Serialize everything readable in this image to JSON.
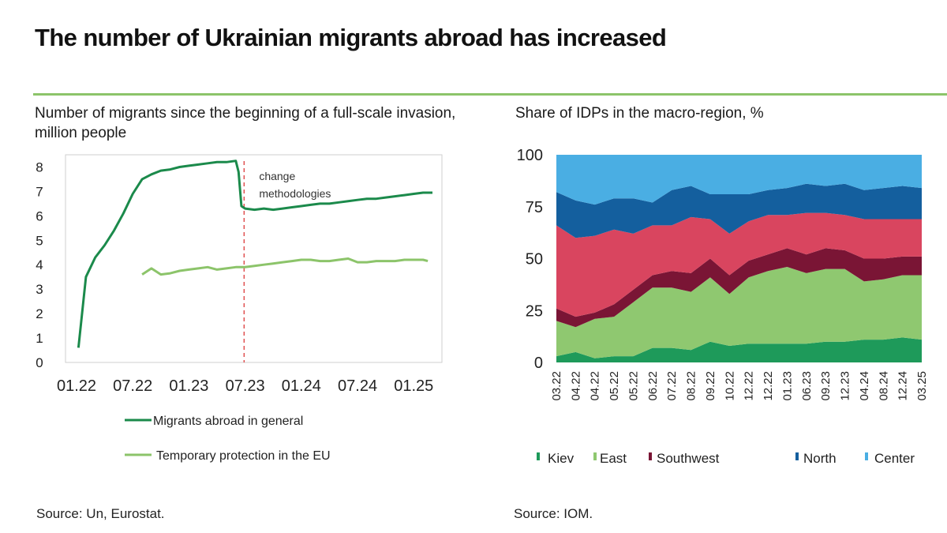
{
  "title": "The number of Ukrainian migrants abroad has increased",
  "colors": {
    "rule": "#8cc46a",
    "migrants_abroad": "#1b8a4b",
    "temporary_protection": "#8cc46a",
    "methodology_line": "#e05050",
    "kiev": "#1e9a5a",
    "east": "#8fc870",
    "southwest": "#7a1535",
    "north_red": "#d9455f",
    "north": "#145f9e",
    "center": "#4aaee3"
  },
  "left": {
    "subtitle": "Number of migrants since the beginning of a full-scale invasion, million people",
    "source": "Source: Un, Eurostat."
  },
  "right": {
    "subtitle": "Share of IDPs in the macro-region, %",
    "source": "Source: IOM."
  },
  "chart_data": [
    {
      "type": "line",
      "ylim": [
        0,
        8.5
      ],
      "yticks": [
        "0",
        "1",
        "2",
        "3",
        "4",
        "5",
        "6",
        "7",
        "8"
      ],
      "xlim": [
        0,
        38
      ],
      "xticks": [
        {
          "label": "01.22",
          "x": 0
        },
        {
          "label": "07.22",
          "x": 6
        },
        {
          "label": "01.23",
          "x": 12
        },
        {
          "label": "07.23",
          "x": 18
        },
        {
          "label": "01.24",
          "x": 24
        },
        {
          "label": "07.24",
          "x": 30
        },
        {
          "label": "01.25",
          "x": 36
        }
      ],
      "annotation": {
        "text_lines": [
          "change",
          "methodologies"
        ],
        "x": 17.3
      },
      "series": [
        {
          "name": "Migrants abroad in general",
          "x": [
            0.2,
            1,
            2,
            3,
            4,
            5,
            6,
            7,
            8,
            9,
            10,
            11,
            12,
            13,
            14,
            15,
            16,
            17,
            17.3,
            17.6,
            18,
            19,
            20,
            21,
            22,
            23,
            24,
            25,
            26,
            27,
            28,
            29,
            30,
            31,
            32,
            33,
            34,
            35,
            36,
            37,
            38
          ],
          "y": [
            0.6,
            3.5,
            4.3,
            4.8,
            5.4,
            6.1,
            6.9,
            7.5,
            7.7,
            7.85,
            7.9,
            8.0,
            8.05,
            8.1,
            8.15,
            8.2,
            8.2,
            8.25,
            7.8,
            6.4,
            6.3,
            6.25,
            6.3,
            6.25,
            6.3,
            6.35,
            6.4,
            6.45,
            6.5,
            6.5,
            6.55,
            6.6,
            6.65,
            6.7,
            6.7,
            6.75,
            6.8,
            6.85,
            6.9,
            6.95,
            6.95
          ]
        },
        {
          "name": "Temporary protection in the EU",
          "x": [
            7,
            8,
            9,
            10,
            11,
            12,
            13,
            14,
            15,
            16,
            17,
            18,
            19,
            20,
            21,
            22,
            23,
            24,
            25,
            26,
            27,
            28,
            29,
            30,
            31,
            32,
            33,
            34,
            35,
            36,
            37,
            37.5
          ],
          "y": [
            3.6,
            3.85,
            3.6,
            3.65,
            3.75,
            3.8,
            3.85,
            3.9,
            3.8,
            3.85,
            3.9,
            3.9,
            3.95,
            4.0,
            4.05,
            4.1,
            4.15,
            4.2,
            4.2,
            4.15,
            4.15,
            4.2,
            4.25,
            4.1,
            4.1,
            4.15,
            4.15,
            4.15,
            4.2,
            4.2,
            4.2,
            4.15
          ]
        }
      ]
    },
    {
      "type": "area",
      "stacked": true,
      "ylim": [
        0,
        100
      ],
      "yticks": [
        "0",
        "25",
        "50",
        "75",
        "100"
      ],
      "x_labels": [
        "03.22",
        "04.22",
        "04.22",
        "05.22",
        "05.22",
        "06.22",
        "07.22",
        "08.22",
        "09.22",
        "10.22",
        "12.22",
        "12.22",
        "01.23",
        "06.23",
        "09.23",
        "12.23",
        "04.24",
        "08.24",
        "12.24",
        "03.25"
      ],
      "legend": [
        "Kiev",
        "East",
        "Southwest",
        "North",
        "Center"
      ],
      "series": [
        {
          "name": "Kiev",
          "values": [
            3,
            5,
            2,
            3,
            3,
            7,
            7,
            6,
            10,
            8,
            9,
            9,
            9,
            9,
            10,
            10,
            11,
            11,
            12,
            11
          ]
        },
        {
          "name": "East",
          "values": [
            17,
            12,
            19,
            19,
            26,
            29,
            29,
            28,
            31,
            25,
            32,
            35,
            37,
            34,
            35,
            35,
            28,
            29,
            30,
            31
          ]
        },
        {
          "name": "Southwest",
          "values": [
            6,
            5,
            3,
            6,
            6,
            6,
            8,
            9,
            9,
            9,
            8,
            8,
            9,
            9,
            10,
            9,
            11,
            10,
            9,
            9
          ]
        },
        {
          "name": "",
          "values": [
            40,
            38,
            37,
            36,
            27,
            24,
            22,
            27,
            19,
            20,
            19,
            19,
            16,
            20,
            17,
            17,
            19,
            19,
            18,
            18
          ]
        },
        {
          "name": "North",
          "values": [
            16,
            18,
            15,
            15,
            17,
            11,
            17,
            15,
            12,
            19,
            13,
            12,
            13,
            14,
            13,
            15,
            14,
            15,
            16,
            15
          ]
        },
        {
          "name": "Center",
          "values": [
            18,
            22,
            24,
            21,
            21,
            23,
            17,
            15,
            19,
            19,
            19,
            17,
            16,
            14,
            15,
            14,
            17,
            16,
            15,
            16
          ]
        }
      ]
    }
  ]
}
